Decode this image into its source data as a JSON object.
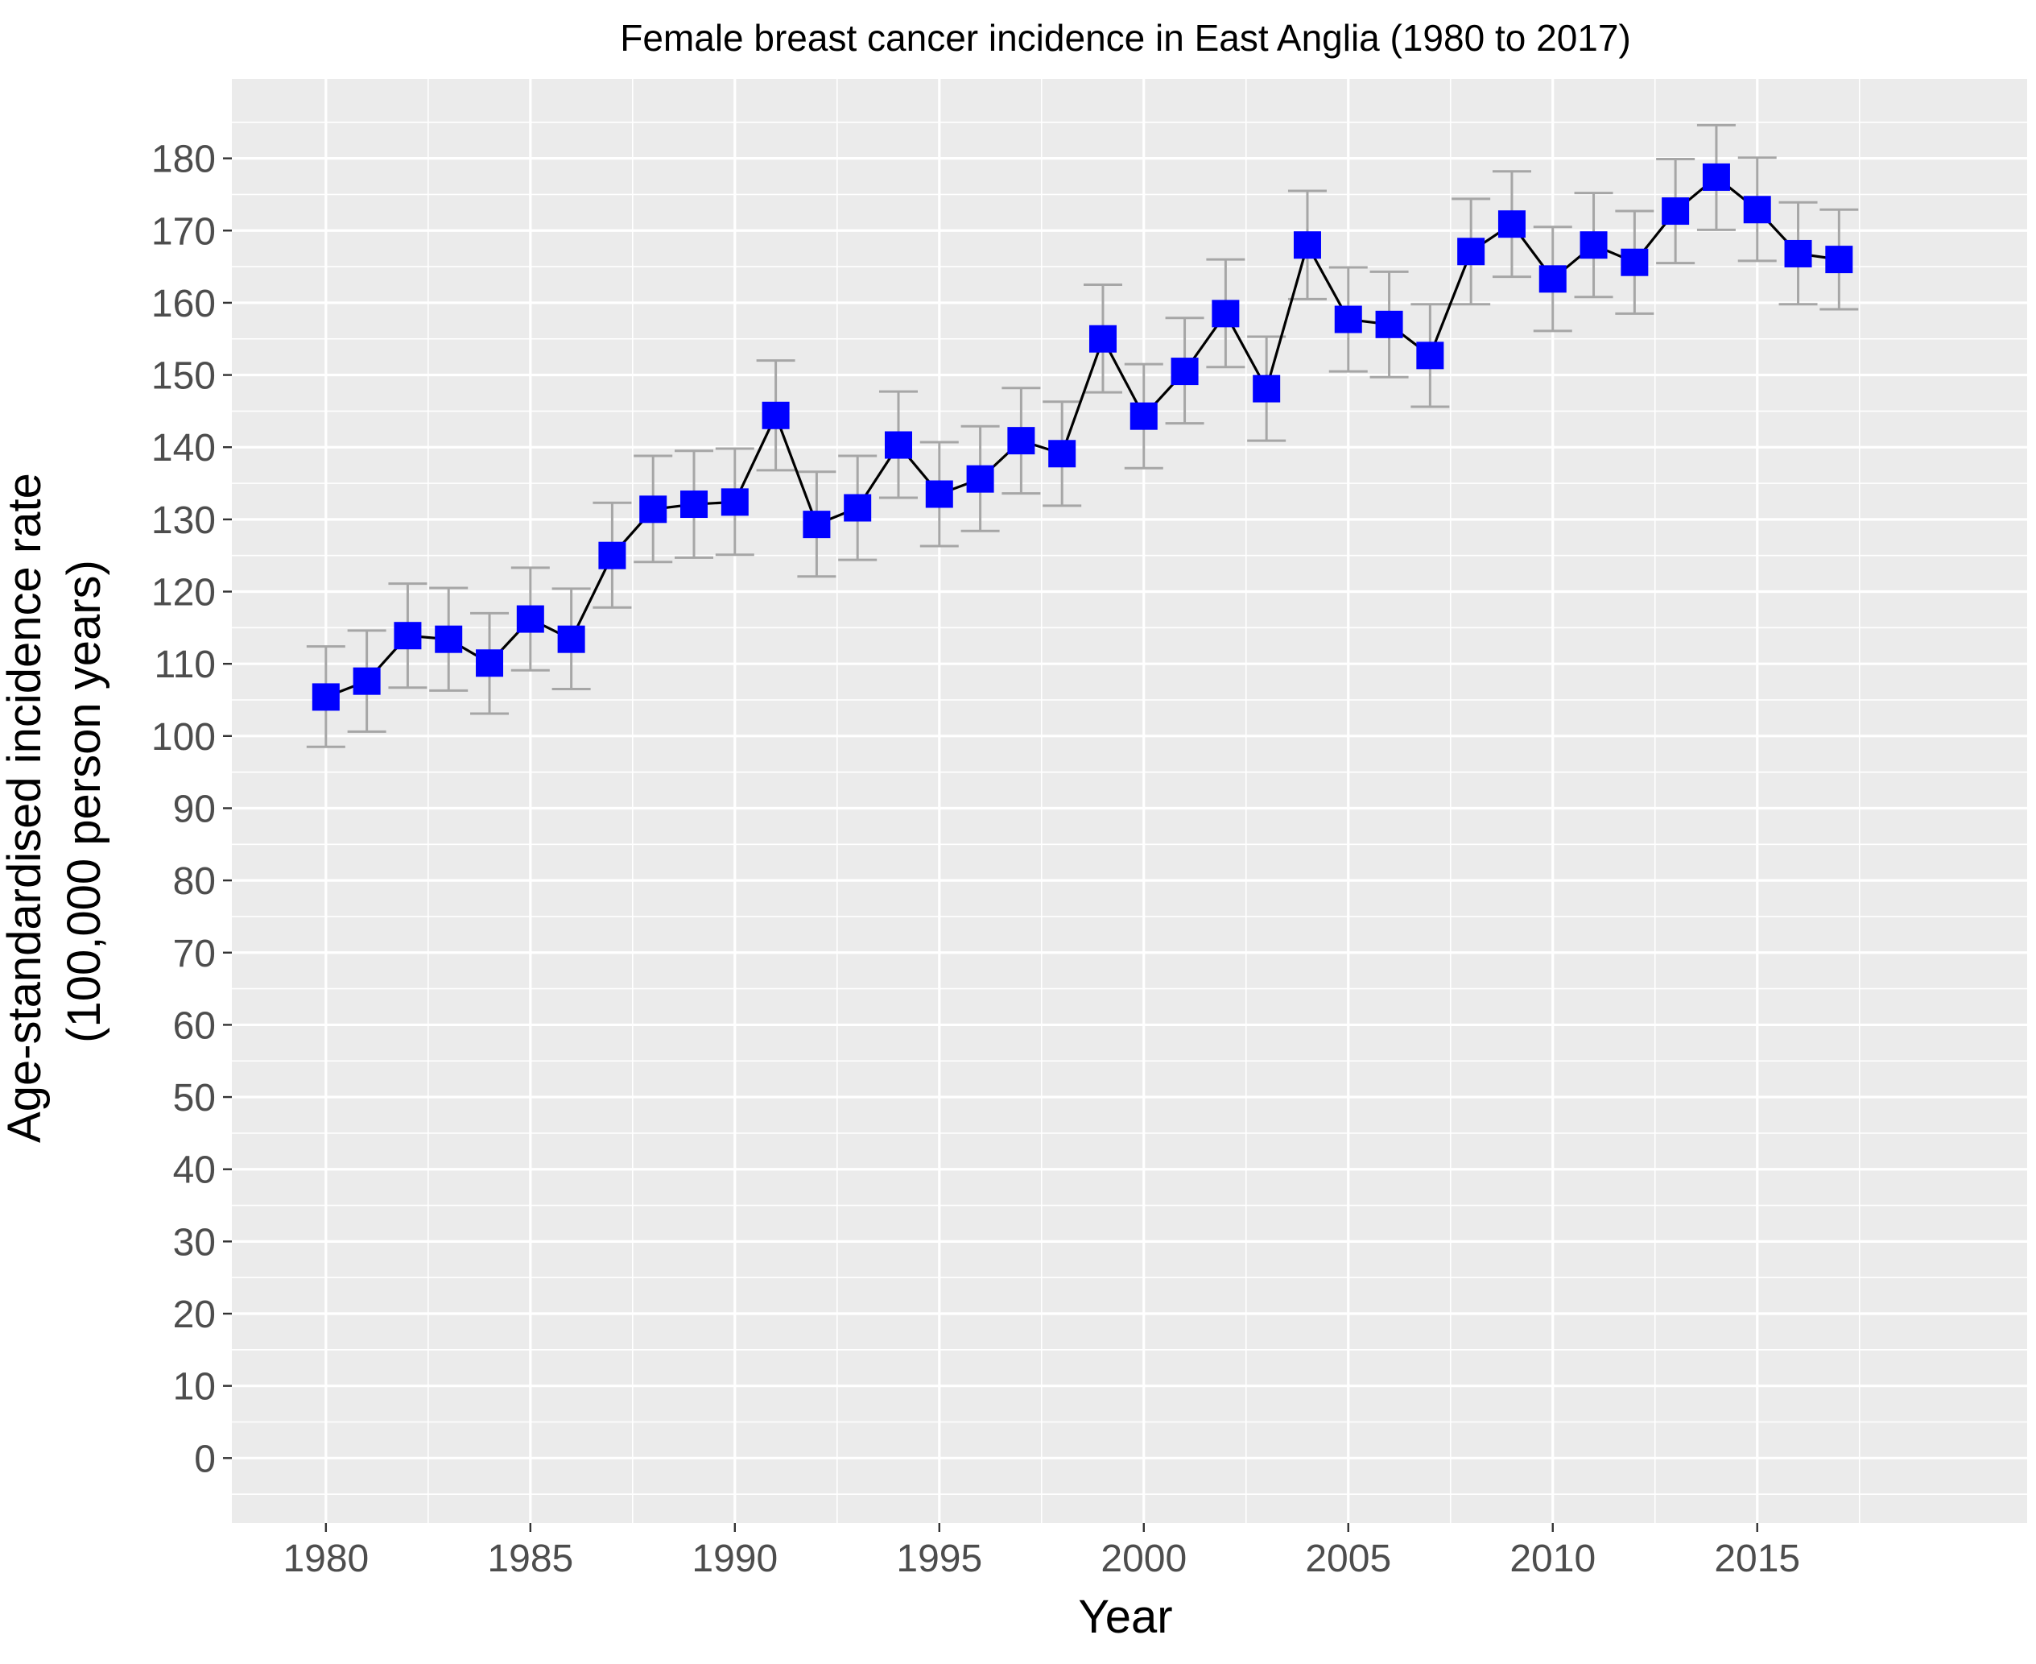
{
  "chart_data": {
    "type": "line",
    "title": "Female breast cancer incidence in East Anglia (1980 to 2017)",
    "xlabel": "Year",
    "ylabel_lines": [
      "Age-standardised incidence rate",
      "(100,000 person years)"
    ],
    "xlim": [
      1977.7,
      2021.6
    ],
    "ylim": [
      -9,
      191
    ],
    "x_ticks": [
      1980,
      1985,
      1990,
      1995,
      2000,
      2005,
      2010,
      2015
    ],
    "y_ticks": [
      0,
      10,
      20,
      30,
      40,
      50,
      60,
      70,
      80,
      90,
      100,
      110,
      120,
      130,
      140,
      150,
      160,
      170,
      180
    ],
    "grid": true,
    "legend": "none",
    "colors": {
      "panel_bg": "#ebebeb",
      "grid": "#ffffff",
      "line": "#000000",
      "marker": "#0000ff",
      "error_bar": "#a6a6a6",
      "tick_label": "#4d4d4d"
    },
    "series": [
      {
        "x": [
          1980,
          1981,
          1982,
          1983,
          1984,
          1985,
          1986,
          1987,
          1988,
          1989,
          1990,
          1991,
          1992,
          1993,
          1994,
          1995,
          1996,
          1997,
          1998,
          1999,
          2000,
          2001,
          2002,
          2003,
          2004,
          2005,
          2006,
          2007,
          2008,
          2009,
          2010,
          2011,
          2012,
          2013,
          2014,
          2015,
          2016,
          2017
        ],
        "y": [
          105.4,
          107.6,
          113.9,
          113.4,
          110.1,
          116.2,
          113.4,
          125.0,
          131.4,
          132.1,
          132.4,
          144.4,
          129.3,
          131.6,
          140.3,
          133.5,
          135.6,
          140.9,
          139.1,
          155.0,
          144.3,
          150.5,
          158.5,
          148.1,
          168.0,
          157.7,
          157.0,
          152.7,
          167.1,
          170.9,
          163.3,
          168.0,
          165.6,
          172.7,
          177.4,
          172.9,
          166.8,
          166.0
        ],
        "y_low": [
          98.5,
          100.6,
          106.7,
          106.3,
          103.1,
          109.1,
          106.5,
          117.8,
          124.1,
          124.7,
          125.1,
          136.8,
          122.1,
          124.4,
          133.0,
          126.3,
          128.4,
          133.6,
          131.9,
          147.6,
          137.1,
          143.3,
          151.1,
          140.9,
          160.5,
          150.5,
          149.7,
          145.6,
          159.8,
          163.6,
          156.1,
          160.8,
          158.5,
          165.5,
          170.1,
          165.8,
          159.8,
          159.1
        ],
        "y_high": [
          112.4,
          114.6,
          121.1,
          120.5,
          117.0,
          123.3,
          120.4,
          132.3,
          138.8,
          139.5,
          139.8,
          152.0,
          136.6,
          138.8,
          147.7,
          140.7,
          142.9,
          148.2,
          146.3,
          162.5,
          151.5,
          157.9,
          166.0,
          155.3,
          175.5,
          164.9,
          164.3,
          159.8,
          174.4,
          178.2,
          170.5,
          175.2,
          172.7,
          179.9,
          184.6,
          180.1,
          173.9,
          172.9
        ]
      }
    ]
  }
}
